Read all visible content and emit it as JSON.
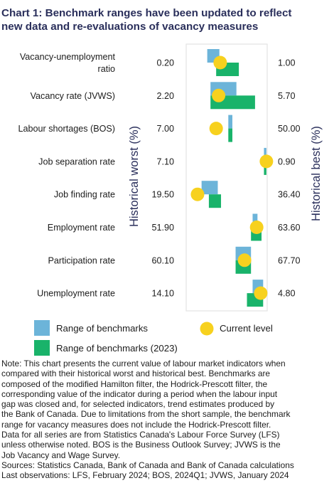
{
  "title_lines": [
    "Chart 1: Benchmark ranges have been updated to reflect",
    "new data and re-evaluations of vacancy measures"
  ],
  "colors": {
    "benchmark": "#6cb4d9",
    "benchmark_2023": "#19b36a",
    "current": "#f7d11e",
    "title": "#2a2f5b",
    "frame": "#e3e3e3"
  },
  "chart_data": {
    "type": "range",
    "value_scale": "normalized position between historical worst (left, 0) and historical best (right, 1)",
    "left_axis_label": "Historical worst (%)",
    "right_axis_label": "Historical best (%)",
    "indicators": [
      {
        "label_lines": [
          "Vacancy-unemployment",
          "ratio"
        ],
        "worst": "0.20",
        "best": "1.00",
        "benchmark": [
          0.26,
          0.41
        ],
        "benchmark_2023": [
          0.37,
          0.65
        ],
        "current": 0.42
      },
      {
        "label_lines": [
          "Vacancy rate (JVWS)"
        ],
        "worst": "2.20",
        "best": "5.70",
        "benchmark": [
          0.3,
          0.62
        ],
        "benchmark_2023": [
          0.3,
          0.85
        ],
        "current": 0.4
      },
      {
        "label_lines": [
          "Labour shortages (BOS)"
        ],
        "worst": "7.00",
        "best": "50.00",
        "benchmark": [
          0.52,
          0.57
        ],
        "benchmark_2023": [
          0.52,
          0.57
        ],
        "current": 0.37
      },
      {
        "label_lines": [
          "Job separation rate"
        ],
        "worst": "7.10",
        "best": "0.90",
        "benchmark": [
          0.96,
          0.99
        ],
        "benchmark_2023": [
          0.96,
          0.99
        ],
        "current": 0.99
      },
      {
        "label_lines": [
          "Job finding rate"
        ],
        "worst": "19.50",
        "best": "36.40",
        "benchmark": [
          0.19,
          0.39
        ],
        "benchmark_2023": [
          0.28,
          0.43
        ],
        "current": 0.14
      },
      {
        "label_lines": [
          "Employment rate"
        ],
        "worst": "51.90",
        "best": "63.60",
        "benchmark": [
          0.82,
          0.88
        ],
        "benchmark_2023": [
          0.8,
          0.93
        ],
        "current": 0.87
      },
      {
        "label_lines": [
          "Participation rate"
        ],
        "worst": "60.10",
        "best": "67.70",
        "benchmark": [
          0.61,
          0.8
        ],
        "benchmark_2023": [
          0.61,
          0.8
        ],
        "current": 0.72
      },
      {
        "label_lines": [
          "Unemployment rate"
        ],
        "worst": "14.10",
        "best": "4.80",
        "benchmark": [
          0.82,
          0.95
        ],
        "benchmark_2023": [
          0.75,
          0.95
        ],
        "current": 0.92
      }
    ],
    "legend": {
      "benchmark": "Range of benchmarks",
      "benchmark_2023": "Range of benchmarks (2023)",
      "current": "Current level"
    }
  },
  "note_lines": [
    "Note: This chart presents the current value of labour market indicators when",
    "compared with their historical worst and historical best. Benchmarks are",
    "composed of the modified Hamilton filter, the Hodrick-Prescott filter, the",
    "corresponding value of the indicator during a period when the labour input",
    "gap was closed and, for selected indicators, trend estimates produced by",
    "the Bank of Canada. Due to limitations from the short sample, the benchmark",
    "range for vacancy measures does not include the Hodrick-Prescott filter.",
    "Data for all series are from Statistics Canada's Labour Force Survey (LFS)",
    "unless otherwise noted. BOS is the Business Outlook Survey; JVWS is the",
    "Job Vacancy and Wage Survey.",
    "Sources: Statistics Canada, Bank of Canada and Bank of Canada calculations",
    "Last observations: LFS, February 2024; BOS, 2024Q1; JVWS, January 2024"
  ]
}
